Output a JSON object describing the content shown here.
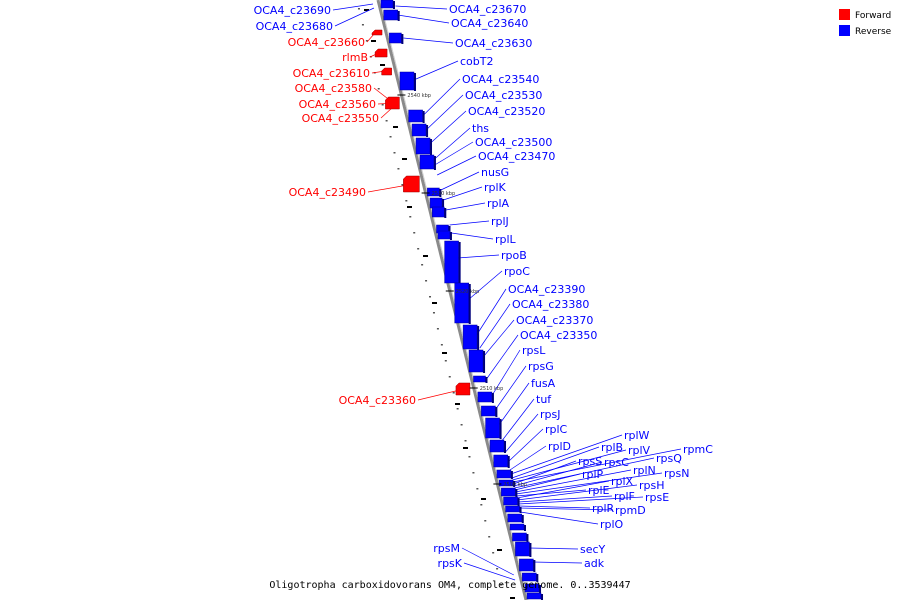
{
  "caption": "Oligotropha carboxidovorans OM4, complete genome.  0..3539447",
  "legend": [
    {
      "label": "Forward",
      "color": "#ff0000"
    },
    {
      "label": "Reverse",
      "color": "#0000ff"
    }
  ],
  "colors": {
    "forward": "#ff0000",
    "reverse": "#0000ff",
    "backbone": "#888888"
  },
  "scale_ticks": [
    "2540 kbp",
    "2530 kbp",
    "2520 kbp",
    "2510 kbp",
    "2500 kbp"
  ],
  "forward_genes": [
    "OCA4_c23660",
    "rlmB",
    "OCA4_c23610",
    "OCA4_c23580",
    "OCA4_c23560",
    "OCA4_c23550",
    "OCA4_c23490",
    "OCA4_c23360"
  ],
  "reverse_genes": [
    "OCA4_c23690",
    "OCA4_c23680",
    "OCA4_c23670",
    "OCA4_c23640",
    "OCA4_c23630",
    "cobT2",
    "OCA4_c23540",
    "OCA4_c23530",
    "OCA4_c23520",
    "ths",
    "OCA4_c23500",
    "OCA4_c23470",
    "nusG",
    "rplK",
    "rplA",
    "rplJ",
    "rplL",
    "rpoB",
    "rpoC",
    "OCA4_c23390",
    "OCA4_c23380",
    "OCA4_c23370",
    "OCA4_c23350",
    "rpsL",
    "rpsG",
    "fusA",
    "tuf",
    "rpsJ",
    "rplC",
    "rplD",
    "rplW",
    "rplB",
    "rplV",
    "rpmC",
    "rpsS",
    "rpsC",
    "rpsQ",
    "rplP",
    "rplN",
    "rpsN",
    "rplE",
    "rplX",
    "rpsH",
    "rplF",
    "rpsE",
    "rplR",
    "rpmD",
    "rplO",
    "secY",
    "adk",
    "rpsM",
    "rpsK"
  ]
}
